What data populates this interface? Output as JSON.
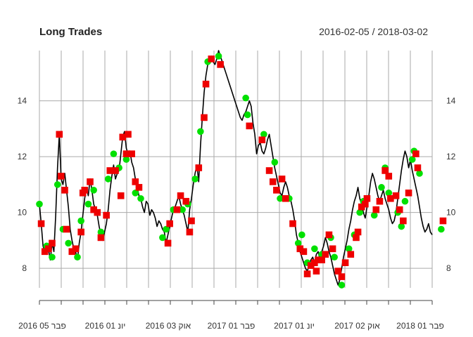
{
  "chart_data": {
    "type": "line",
    "title": "Long Trades",
    "date_range": "2016-02-05 / 2018-03-02",
    "ylim": [
      7.3,
      15.8
    ],
    "y_ticks": [
      8,
      10,
      12,
      14
    ],
    "x_tick_labels": [
      "פבר 05 2016",
      "יונ 01 2016",
      "אוק 03 2016",
      "פבר 01 2017",
      "יונ 01 2017",
      "אוק 02 2017",
      "פבר 01 2018"
    ],
    "grid": true,
    "colors": {
      "line": "#000000",
      "entry": "#00e000",
      "exit": "#ee0000",
      "grid": "#aaaaaa"
    },
    "series": [
      {
        "values": [
          10.3,
          9.6,
          8.8,
          8.6,
          8.5,
          8.7,
          8.3,
          8.9,
          8.6,
          9.9,
          11.6,
          12.8,
          11.2,
          11.0,
          11.4,
          10.8,
          10.2,
          9.4,
          9.0,
          8.7,
          8.6,
          8.3,
          8.9,
          9.3,
          9.9,
          10.5,
          10.9,
          10.6,
          11.2,
          10.8,
          10.3,
          10.1,
          9.9,
          9.5,
          9.2,
          9.0,
          9.3,
          9.6,
          10.1,
          10.8,
          11.3,
          11.7,
          11.2,
          11.4,
          11.5,
          12.1,
          12.7,
          12.9,
          12.3,
          12.1,
          12.2,
          11.8,
          11.6,
          11.2,
          10.9,
          10.6,
          10.5,
          10.2,
          10.0,
          10.4,
          10.3,
          9.9,
          10.1,
          10.0,
          9.8,
          9.5,
          9.7,
          9.6,
          9.4,
          9.3,
          8.9,
          9.2,
          9.5,
          9.8,
          10.1,
          10.2,
          10.4,
          10.6,
          10.3,
          10.1,
          9.9,
          9.6,
          9.3,
          10.1,
          10.5,
          11.0,
          11.4,
          11.7,
          11.1,
          12.4,
          13.4,
          14.3,
          14.9,
          15.3,
          15.5,
          15.6,
          15.4,
          15.3,
          15.5,
          15.8,
          15.6,
          15.4,
          15.2,
          15.0,
          14.8,
          14.6,
          14.4,
          14.2,
          14.0,
          13.8,
          13.6,
          13.4,
          13.3,
          13.5,
          13.6,
          13.8,
          14.0,
          13.8,
          13.2,
          12.8,
          12.1,
          12.4,
          12.5,
          12.2,
          12.1,
          12.3,
          12.6,
          12.8,
          12.4,
          12.0,
          11.6,
          11.3,
          11.0,
          10.7,
          10.6,
          10.9,
          11.1,
          10.9,
          10.6,
          10.4,
          10.1,
          9.7,
          9.2,
          8.9,
          8.6,
          8.4,
          8.2,
          8.0,
          7.9,
          8.1,
          8.3,
          8.4,
          8.2,
          8.5,
          8.6,
          8.3,
          8.6,
          8.8,
          9.1,
          8.9,
          8.6,
          8.4,
          8.1,
          7.8,
          7.6,
          7.4,
          7.6,
          8.0,
          8.4,
          8.7,
          9.0,
          9.4,
          9.7,
          10.1,
          10.4,
          10.6,
          10.9,
          10.5,
          10.3,
          10.0,
          9.8,
          10.2,
          10.6,
          11.1,
          11.4,
          11.2,
          10.9,
          10.6,
          10.4,
          10.6,
          10.8,
          10.5,
          10.3,
          10.1,
          9.8,
          9.6,
          9.7,
          10.0,
          10.5,
          11.0,
          11.5,
          11.9,
          12.2,
          12.0,
          11.6,
          11.9,
          11.5,
          11.2,
          10.9,
          10.6,
          10.2,
          9.8,
          9.5,
          9.3,
          9.4,
          9.6,
          9.3,
          9.2
        ]
      }
    ],
    "entries": [
      {
        "x": 0,
        "y": 10.3
      },
      {
        "x": 4,
        "y": 8.8
      },
      {
        "x": 7,
        "y": 8.4
      },
      {
        "x": 10,
        "y": 11.0
      },
      {
        "x": 13,
        "y": 9.4
      },
      {
        "x": 16,
        "y": 8.9
      },
      {
        "x": 21,
        "y": 8.4
      },
      {
        "x": 23,
        "y": 9.7
      },
      {
        "x": 27,
        "y": 10.3
      },
      {
        "x": 30,
        "y": 10.8
      },
      {
        "x": 34,
        "y": 9.3
      },
      {
        "x": 38,
        "y": 11.2
      },
      {
        "x": 41,
        "y": 12.1
      },
      {
        "x": 44,
        "y": 11.6
      },
      {
        "x": 48,
        "y": 11.9
      },
      {
        "x": 53,
        "y": 10.7
      },
      {
        "x": 56,
        "y": 10.5
      },
      {
        "x": 68,
        "y": 9.1
      },
      {
        "x": 70,
        "y": 9.4
      },
      {
        "x": 74,
        "y": 10.1
      },
      {
        "x": 79,
        "y": 10.1
      },
      {
        "x": 82,
        "y": 10.3
      },
      {
        "x": 86,
        "y": 11.2
      },
      {
        "x": 89,
        "y": 12.9
      },
      {
        "x": 93,
        "y": 15.4
      },
      {
        "x": 99,
        "y": 15.6
      },
      {
        "x": 114,
        "y": 14.1
      },
      {
        "x": 115,
        "y": 13.5
      },
      {
        "x": 124,
        "y": 12.8
      },
      {
        "x": 130,
        "y": 11.8
      },
      {
        "x": 133,
        "y": 10.5
      },
      {
        "x": 138,
        "y": 10.5
      },
      {
        "x": 143,
        "y": 8.9
      },
      {
        "x": 145,
        "y": 9.2
      },
      {
        "x": 148,
        "y": 8.2
      },
      {
        "x": 152,
        "y": 8.7
      },
      {
        "x": 156,
        "y": 8.5
      },
      {
        "x": 161,
        "y": 9.1
      },
      {
        "x": 163,
        "y": 8.4
      },
      {
        "x": 167,
        "y": 7.4
      },
      {
        "x": 171,
        "y": 8.7
      },
      {
        "x": 174,
        "y": 9.2
      },
      {
        "x": 177,
        "y": 10.0
      },
      {
        "x": 179,
        "y": 10.4
      },
      {
        "x": 185,
        "y": 9.9
      },
      {
        "x": 189,
        "y": 10.9
      },
      {
        "x": 191,
        "y": 11.6
      },
      {
        "x": 193,
        "y": 10.7
      },
      {
        "x": 198,
        "y": 10.0
      },
      {
        "x": 200,
        "y": 9.5
      },
      {
        "x": 202,
        "y": 10.4
      },
      {
        "x": 206,
        "y": 11.9
      },
      {
        "x": 207,
        "y": 12.2
      },
      {
        "x": 210,
        "y": 11.4
      },
      {
        "x": 222,
        "y": 9.4
      }
    ],
    "exits": [
      {
        "x": 1,
        "y": 9.6
      },
      {
        "x": 3,
        "y": 8.6
      },
      {
        "x": 5,
        "y": 8.7
      },
      {
        "x": 7,
        "y": 8.9
      },
      {
        "x": 11,
        "y": 12.8
      },
      {
        "x": 12,
        "y": 11.3
      },
      {
        "x": 14,
        "y": 10.8
      },
      {
        "x": 15,
        "y": 9.4
      },
      {
        "x": 18,
        "y": 8.6
      },
      {
        "x": 20,
        "y": 8.7
      },
      {
        "x": 23,
        "y": 9.3
      },
      {
        "x": 24,
        "y": 10.7
      },
      {
        "x": 25,
        "y": 10.8
      },
      {
        "x": 28,
        "y": 11.1
      },
      {
        "x": 30,
        "y": 10.1
      },
      {
        "x": 32,
        "y": 10.0
      },
      {
        "x": 34,
        "y": 9.1
      },
      {
        "x": 37,
        "y": 9.9
      },
      {
        "x": 39,
        "y": 11.5
      },
      {
        "x": 42,
        "y": 11.5
      },
      {
        "x": 45,
        "y": 10.6
      },
      {
        "x": 46,
        "y": 12.7
      },
      {
        "x": 48,
        "y": 12.1
      },
      {
        "x": 49,
        "y": 12.8
      },
      {
        "x": 51,
        "y": 12.1
      },
      {
        "x": 53,
        "y": 11.1
      },
      {
        "x": 55,
        "y": 10.9
      },
      {
        "x": 71,
        "y": 8.9
      },
      {
        "x": 72,
        "y": 9.6
      },
      {
        "x": 76,
        "y": 10.1
      },
      {
        "x": 78,
        "y": 10.6
      },
      {
        "x": 81,
        "y": 10.4
      },
      {
        "x": 83,
        "y": 9.3
      },
      {
        "x": 84,
        "y": 9.7
      },
      {
        "x": 88,
        "y": 11.6
      },
      {
        "x": 91,
        "y": 13.4
      },
      {
        "x": 92,
        "y": 14.6
      },
      {
        "x": 95,
        "y": 15.5
      },
      {
        "x": 100,
        "y": 15.3
      },
      {
        "x": 116,
        "y": 13.1
      },
      {
        "x": 123,
        "y": 12.6
      },
      {
        "x": 127,
        "y": 11.5
      },
      {
        "x": 129,
        "y": 11.1
      },
      {
        "x": 131,
        "y": 10.8
      },
      {
        "x": 134,
        "y": 11.2
      },
      {
        "x": 136,
        "y": 10.5
      },
      {
        "x": 140,
        "y": 9.6
      },
      {
        "x": 144,
        "y": 8.7
      },
      {
        "x": 146,
        "y": 8.6
      },
      {
        "x": 148,
        "y": 7.8
      },
      {
        "x": 150,
        "y": 8.1
      },
      {
        "x": 152,
        "y": 8.2
      },
      {
        "x": 153,
        "y": 7.9
      },
      {
        "x": 154,
        "y": 8.3
      },
      {
        "x": 156,
        "y": 8.3
      },
      {
        "x": 158,
        "y": 8.5
      },
      {
        "x": 160,
        "y": 9.2
      },
      {
        "x": 162,
        "y": 8.7
      },
      {
        "x": 165,
        "y": 7.9
      },
      {
        "x": 167,
        "y": 7.7
      },
      {
        "x": 169,
        "y": 8.2
      },
      {
        "x": 172,
        "y": 8.5
      },
      {
        "x": 175,
        "y": 9.1
      },
      {
        "x": 176,
        "y": 9.3
      },
      {
        "x": 178,
        "y": 10.2
      },
      {
        "x": 180,
        "y": 10.3
      },
      {
        "x": 181,
        "y": 10.5
      },
      {
        "x": 186,
        "y": 10.1
      },
      {
        "x": 188,
        "y": 10.4
      },
      {
        "x": 191,
        "y": 11.5
      },
      {
        "x": 193,
        "y": 11.3
      },
      {
        "x": 194,
        "y": 10.5
      },
      {
        "x": 197,
        "y": 10.6
      },
      {
        "x": 199,
        "y": 10.1
      },
      {
        "x": 201,
        "y": 9.7
      },
      {
        "x": 204,
        "y": 10.7
      },
      {
        "x": 208,
        "y": 12.1
      },
      {
        "x": 209,
        "y": 11.6
      },
      {
        "x": 223,
        "y": 9.7
      }
    ]
  }
}
